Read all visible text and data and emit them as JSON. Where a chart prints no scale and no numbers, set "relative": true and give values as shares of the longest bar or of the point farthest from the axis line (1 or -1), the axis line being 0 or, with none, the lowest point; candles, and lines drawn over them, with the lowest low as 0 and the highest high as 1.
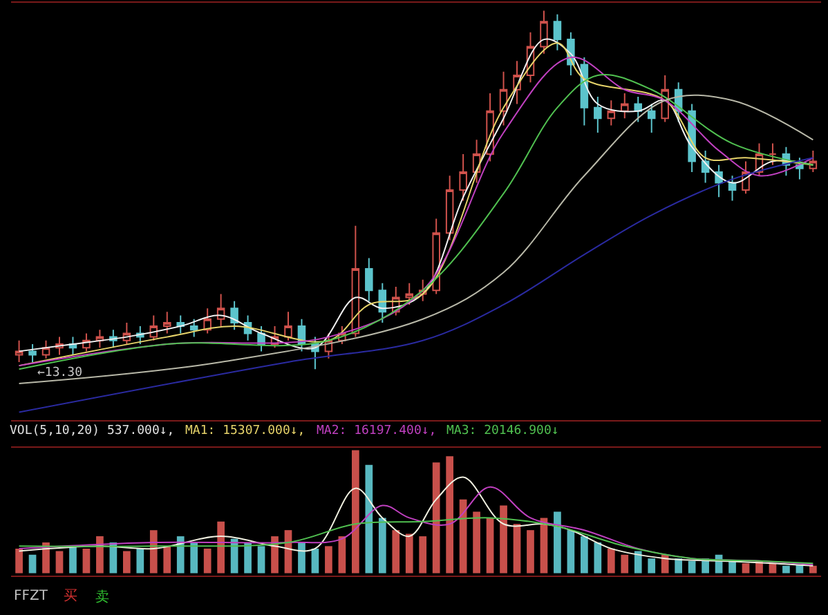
{
  "chart_data": [
    {
      "type": "candlestick",
      "relative": true,
      "categories": [
        null,
        null,
        null,
        null,
        null,
        null,
        null,
        null,
        null,
        null,
        null,
        null,
        null,
        null,
        null,
        null,
        null,
        null,
        null,
        null,
        null,
        null,
        null,
        null,
        null,
        null,
        null,
        null,
        null,
        null,
        null,
        null,
        null,
        null,
        null,
        null,
        null,
        null,
        null,
        null,
        null,
        null,
        null,
        null,
        null,
        null,
        null,
        null,
        null,
        null,
        null,
        null,
        null,
        null,
        null,
        null,
        null,
        null,
        null,
        null
      ],
      "ohlc": [
        [
          0.04,
          0.08,
          0.02,
          0.05
        ],
        [
          0.05,
          0.07,
          0.02,
          0.04
        ],
        [
          0.04,
          0.08,
          0.03,
          0.06
        ],
        [
          0.06,
          0.09,
          0.04,
          0.07
        ],
        [
          0.07,
          0.09,
          0.04,
          0.06
        ],
        [
          0.06,
          0.1,
          0.05,
          0.08
        ],
        [
          0.08,
          0.11,
          0.06,
          0.09
        ],
        [
          0.09,
          0.11,
          0.06,
          0.08
        ],
        [
          0.08,
          0.13,
          0.07,
          0.1
        ],
        [
          0.1,
          0.12,
          0.07,
          0.09
        ],
        [
          0.09,
          0.15,
          0.08,
          0.12
        ],
        [
          0.12,
          0.16,
          0.1,
          0.13
        ],
        [
          0.13,
          0.15,
          0.1,
          0.12
        ],
        [
          0.12,
          0.14,
          0.09,
          0.11
        ],
        [
          0.11,
          0.17,
          0.1,
          0.14
        ],
        [
          0.14,
          0.21,
          0.12,
          0.17
        ],
        [
          0.17,
          0.19,
          0.11,
          0.13
        ],
        [
          0.13,
          0.15,
          0.08,
          0.1
        ],
        [
          0.1,
          0.12,
          0.05,
          0.07
        ],
        [
          0.07,
          0.12,
          0.06,
          0.09
        ],
        [
          0.09,
          0.16,
          0.08,
          0.12
        ],
        [
          0.12,
          0.14,
          0.05,
          0.07
        ],
        [
          0.07,
          0.09,
          0,
          0.05
        ],
        [
          0.05,
          0.1,
          0.03,
          0.08
        ],
        [
          0.08,
          0.12,
          0.07,
          0.1
        ],
        [
          0.1,
          0.4,
          0.09,
          0.28
        ],
        [
          0.28,
          0.31,
          0.19,
          0.22
        ],
        [
          0.22,
          0.24,
          0.13,
          0.16
        ],
        [
          0.16,
          0.23,
          0.15,
          0.2
        ],
        [
          0.2,
          0.24,
          0.18,
          0.21
        ],
        [
          0.21,
          0.25,
          0.19,
          0.22
        ],
        [
          0.22,
          0.42,
          0.21,
          0.38
        ],
        [
          0.38,
          0.54,
          0.36,
          0.5
        ],
        [
          0.5,
          0.6,
          0.47,
          0.55
        ],
        [
          0.55,
          0.64,
          0.52,
          0.6
        ],
        [
          0.6,
          0.77,
          0.58,
          0.72
        ],
        [
          0.72,
          0.83,
          0.68,
          0.78
        ],
        [
          0.78,
          0.86,
          0.74,
          0.82
        ],
        [
          0.82,
          0.94,
          0.8,
          0.9
        ],
        [
          0.9,
          1,
          0.88,
          0.97
        ],
        [
          0.97,
          0.99,
          0.89,
          0.92
        ],
        [
          0.92,
          0.94,
          0.82,
          0.85
        ],
        [
          0.85,
          0.87,
          0.68,
          0.73
        ],
        [
          0.73,
          0.76,
          0.66,
          0.7
        ],
        [
          0.7,
          0.75,
          0.68,
          0.72
        ],
        [
          0.72,
          0.77,
          0.7,
          0.74
        ],
        [
          0.74,
          0.76,
          0.69,
          0.72
        ],
        [
          0.72,
          0.74,
          0.66,
          0.7
        ],
        [
          0.7,
          0.82,
          0.69,
          0.78
        ],
        [
          0.78,
          0.8,
          0.69,
          0.72
        ],
        [
          0.72,
          0.74,
          0.55,
          0.58
        ],
        [
          0.58,
          0.61,
          0.52,
          0.55
        ],
        [
          0.55,
          0.57,
          0.48,
          0.52
        ],
        [
          0.52,
          0.54,
          0.47,
          0.5
        ],
        [
          0.5,
          0.58,
          0.49,
          0.55
        ],
        [
          0.55,
          0.63,
          0.54,
          0.6
        ],
        [
          0.6,
          0.63,
          0.57,
          0.6
        ],
        [
          0.6,
          0.62,
          0.54,
          0.57
        ],
        [
          0.57,
          0.59,
          0.53,
          0.56
        ],
        [
          0.56,
          0.61,
          0.55,
          0.58
        ]
      ],
      "series": [
        {
          "type": "line",
          "color": "#f0f0f0",
          "values": [
            0.05,
            null,
            null,
            null,
            0.07,
            null,
            null,
            null,
            0.09,
            null,
            null,
            null,
            0.12,
            null,
            null,
            0.15,
            null,
            null,
            0.1,
            null,
            null,
            null,
            0.06,
            null,
            null,
            0.2,
            null,
            0.17,
            null,
            null,
            0.21,
            null,
            null,
            0.48,
            null,
            null,
            0.7,
            null,
            null,
            0.92,
            null,
            0.88,
            null,
            0.74,
            null,
            null,
            0.72,
            null,
            0.75,
            null,
            0.62,
            null,
            null,
            0.52,
            null,
            null,
            0.58,
            null,
            null,
            0.57
          ]
        },
        {
          "type": "line",
          "color": "#e6d36a",
          "values": [
            0.01,
            null,
            null,
            null,
            null,
            null,
            null,
            null,
            null,
            null,
            null,
            0.09,
            null,
            null,
            null,
            null,
            0.12,
            null,
            null,
            null,
            null,
            null,
            null,
            0.08,
            null,
            null,
            0.18,
            null,
            null,
            null,
            0.21,
            null,
            null,
            null,
            null,
            null,
            0.73,
            null,
            null,
            null,
            0.91,
            null,
            0.81,
            null,
            null,
            null,
            null,
            null,
            0.75,
            null,
            null,
            0.59,
            null,
            null,
            0.59,
            null,
            null,
            null,
            null,
            0.57
          ]
        },
        {
          "type": "line",
          "color": "#c040c0",
          "values": [
            0.01,
            null,
            null,
            null,
            null,
            null,
            null,
            null,
            null,
            null,
            null,
            0.07,
            null,
            null,
            null,
            null,
            null,
            null,
            null,
            null,
            null,
            null,
            null,
            0.09,
            null,
            null,
            null,
            null,
            null,
            null,
            0.22,
            null,
            null,
            null,
            null,
            null,
            0.66,
            null,
            null,
            null,
            null,
            0.87,
            null,
            null,
            null,
            0.78,
            null,
            null,
            0.75,
            null,
            null,
            null,
            0.61,
            null,
            null,
            0.54,
            null,
            null,
            null,
            0.59
          ]
        },
        {
          "type": "line",
          "color": "#50c050",
          "values": [
            0,
            null,
            null,
            null,
            null,
            null,
            null,
            null,
            null,
            null,
            null,
            0.07,
            null,
            null,
            null,
            null,
            null,
            null,
            null,
            null,
            null,
            null,
            null,
            0.08,
            null,
            null,
            null,
            null,
            null,
            null,
            0.22,
            null,
            null,
            null,
            null,
            null,
            0.49,
            null,
            null,
            null,
            0.73,
            null,
            null,
            0.82,
            null,
            null,
            null,
            0.78,
            null,
            null,
            null,
            null,
            null,
            0.63,
            null,
            null,
            null,
            null,
            null,
            0.57
          ]
        },
        {
          "type": "line",
          "color": "#b8b8a8",
          "values": [
            -0.04,
            null,
            null,
            null,
            null,
            null,
            null,
            null,
            null,
            null,
            null,
            null,
            null,
            null,
            null,
            0.02,
            null,
            null,
            null,
            null,
            null,
            null,
            null,
            null,
            null,
            null,
            null,
            null,
            null,
            null,
            0.14,
            null,
            null,
            null,
            null,
            null,
            0.27,
            null,
            null,
            null,
            null,
            null,
            0.54,
            null,
            null,
            null,
            null,
            null,
            0.75,
            null,
            null,
            null,
            null,
            0.75,
            null,
            null,
            null,
            null,
            null,
            0.64
          ]
        },
        {
          "type": "line",
          "color": "#2a2aa0",
          "values": [
            -0.12,
            null,
            null,
            null,
            null,
            null,
            null,
            null,
            null,
            null,
            null,
            null,
            null,
            null,
            null,
            null,
            null,
            null,
            null,
            null,
            0.02,
            null,
            null,
            null,
            null,
            null,
            null,
            null,
            null,
            null,
            0.08,
            null,
            null,
            null,
            null,
            null,
            0.18,
            null,
            null,
            null,
            null,
            null,
            0.32,
            null,
            null,
            null,
            null,
            0.43,
            null,
            null,
            null,
            null,
            null,
            0.53,
            null,
            null,
            null,
            null,
            null,
            0.59
          ]
        }
      ],
      "annotations": [
        "←13.30"
      ]
    },
    {
      "type": "bar",
      "relative": true,
      "categories": [
        null,
        null,
        null,
        null,
        null,
        null,
        null,
        null,
        null,
        null,
        null,
        null,
        null,
        null,
        null,
        null,
        null,
        null,
        null,
        null,
        null,
        null,
        null,
        null,
        null,
        null,
        null,
        null,
        null,
        null,
        null,
        null,
        null,
        null,
        null,
        null,
        null,
        null,
        null,
        null,
        null,
        null,
        null,
        null,
        null,
        null,
        null,
        null,
        null,
        null,
        null,
        null,
        null,
        null,
        null,
        null,
        null,
        null,
        null,
        null
      ],
      "values": [
        0.2,
        0.15,
        0.25,
        0.18,
        0.22,
        0.2,
        0.3,
        0.25,
        0.18,
        0.2,
        0.35,
        0.22,
        0.3,
        0.25,
        0.2,
        0.42,
        0.28,
        0.25,
        0.22,
        0.3,
        0.35,
        0.25,
        0.2,
        0.22,
        0.3,
        1.0,
        0.88,
        0.45,
        0.35,
        0.32,
        0.3,
        0.9,
        0.95,
        0.6,
        0.5,
        0.45,
        0.55,
        0.4,
        0.35,
        0.45,
        0.5,
        0.35,
        0.3,
        0.25,
        0.2,
        0.15,
        0.18,
        0.12,
        0.15,
        0.12,
        0.1,
        0.12,
        0.15,
        0.1,
        0.08,
        0.1,
        0.08,
        0.06,
        0.07,
        0.06
      ],
      "colors": [
        "#c8504b",
        "#58b8c0",
        "#c8504b",
        "#c8504b",
        "#58b8c0",
        "#c8504b",
        "#c8504b",
        "#58b8c0",
        "#c8504b",
        "#58b8c0",
        "#c8504b",
        "#c8504b",
        "#58b8c0",
        "#58b8c0",
        "#c8504b",
        "#c8504b",
        "#58b8c0",
        "#58b8c0",
        "#58b8c0",
        "#c8504b",
        "#c8504b",
        "#58b8c0",
        "#58b8c0",
        "#c8504b",
        "#c8504b",
        "#c8504b",
        "#58b8c0",
        "#58b8c0",
        "#c8504b",
        "#c8504b",
        "#c8504b",
        "#c8504b",
        "#c8504b",
        "#c8504b",
        "#c8504b",
        "#c8504b",
        "#c8504b",
        "#c8504b",
        "#c8504b",
        "#c8504b",
        "#58b8c0",
        "#58b8c0",
        "#58b8c0",
        "#58b8c0",
        "#c8504b",
        "#c8504b",
        "#58b8c0",
        "#58b8c0",
        "#c8504b",
        "#58b8c0",
        "#58b8c0",
        "#58b8c0",
        "#58b8c0",
        "#58b8c0",
        "#c8504b",
        "#c8504b",
        "#c8504b",
        "#58b8c0",
        "#58b8c0",
        "#c8504b"
      ],
      "series": [
        {
          "type": "line",
          "color": "#f0f0e0",
          "values": [
            0.18,
            null,
            null,
            null,
            null,
            null,
            0.22,
            null,
            null,
            null,
            0.2,
            null,
            null,
            null,
            null,
            0.3,
            null,
            null,
            null,
            0.22,
            null,
            null,
            0.2,
            null,
            null,
            0.69,
            null,
            0.45,
            null,
            0.3,
            null,
            0.6,
            null,
            0.78,
            null,
            null,
            0.4,
            null,
            null,
            0.4,
            null,
            0.35,
            null,
            null,
            0.2,
            null,
            null,
            null,
            0.12,
            null,
            null,
            null,
            0.1,
            null,
            null,
            null,
            0.08,
            null,
            null,
            0.06
          ]
        },
        {
          "type": "line",
          "color": "#c040c0",
          "values": [
            0.2,
            null,
            null,
            null,
            null,
            null,
            null,
            null,
            null,
            null,
            0.25,
            null,
            null,
            null,
            null,
            null,
            null,
            null,
            null,
            null,
            0.25,
            null,
            null,
            null,
            0.28,
            null,
            null,
            0.55,
            null,
            0.45,
            null,
            null,
            0.4,
            null,
            null,
            0.7,
            null,
            null,
            0.45,
            null,
            null,
            null,
            0.35,
            null,
            null,
            null,
            0.2,
            null,
            null,
            null,
            0.12,
            null,
            null,
            null,
            null,
            0.1,
            null,
            null,
            null,
            0.07
          ]
        },
        {
          "type": "line",
          "color": "#50c050",
          "values": [
            0.22,
            null,
            null,
            null,
            null,
            null,
            null,
            null,
            null,
            null,
            0.22,
            null,
            null,
            null,
            null,
            null,
            null,
            null,
            null,
            null,
            0.25,
            null,
            null,
            null,
            null,
            0.4,
            null,
            null,
            null,
            null,
            0.42,
            null,
            null,
            null,
            null,
            0.45,
            null,
            null,
            null,
            null,
            0.38,
            null,
            null,
            null,
            null,
            0.22,
            null,
            null,
            null,
            null,
            0.12,
            null,
            null,
            null,
            null,
            0.1,
            null,
            null,
            null,
            0.08
          ]
        }
      ],
      "annotations": [
        "VOL(5,10,20) 537.000↓,",
        "MA1: 15307.000↓,",
        "MA2: 16197.400↓,",
        "MA3: 20146.900↓",
        "FFZT",
        "买",
        "卖"
      ]
    }
  ]
}
